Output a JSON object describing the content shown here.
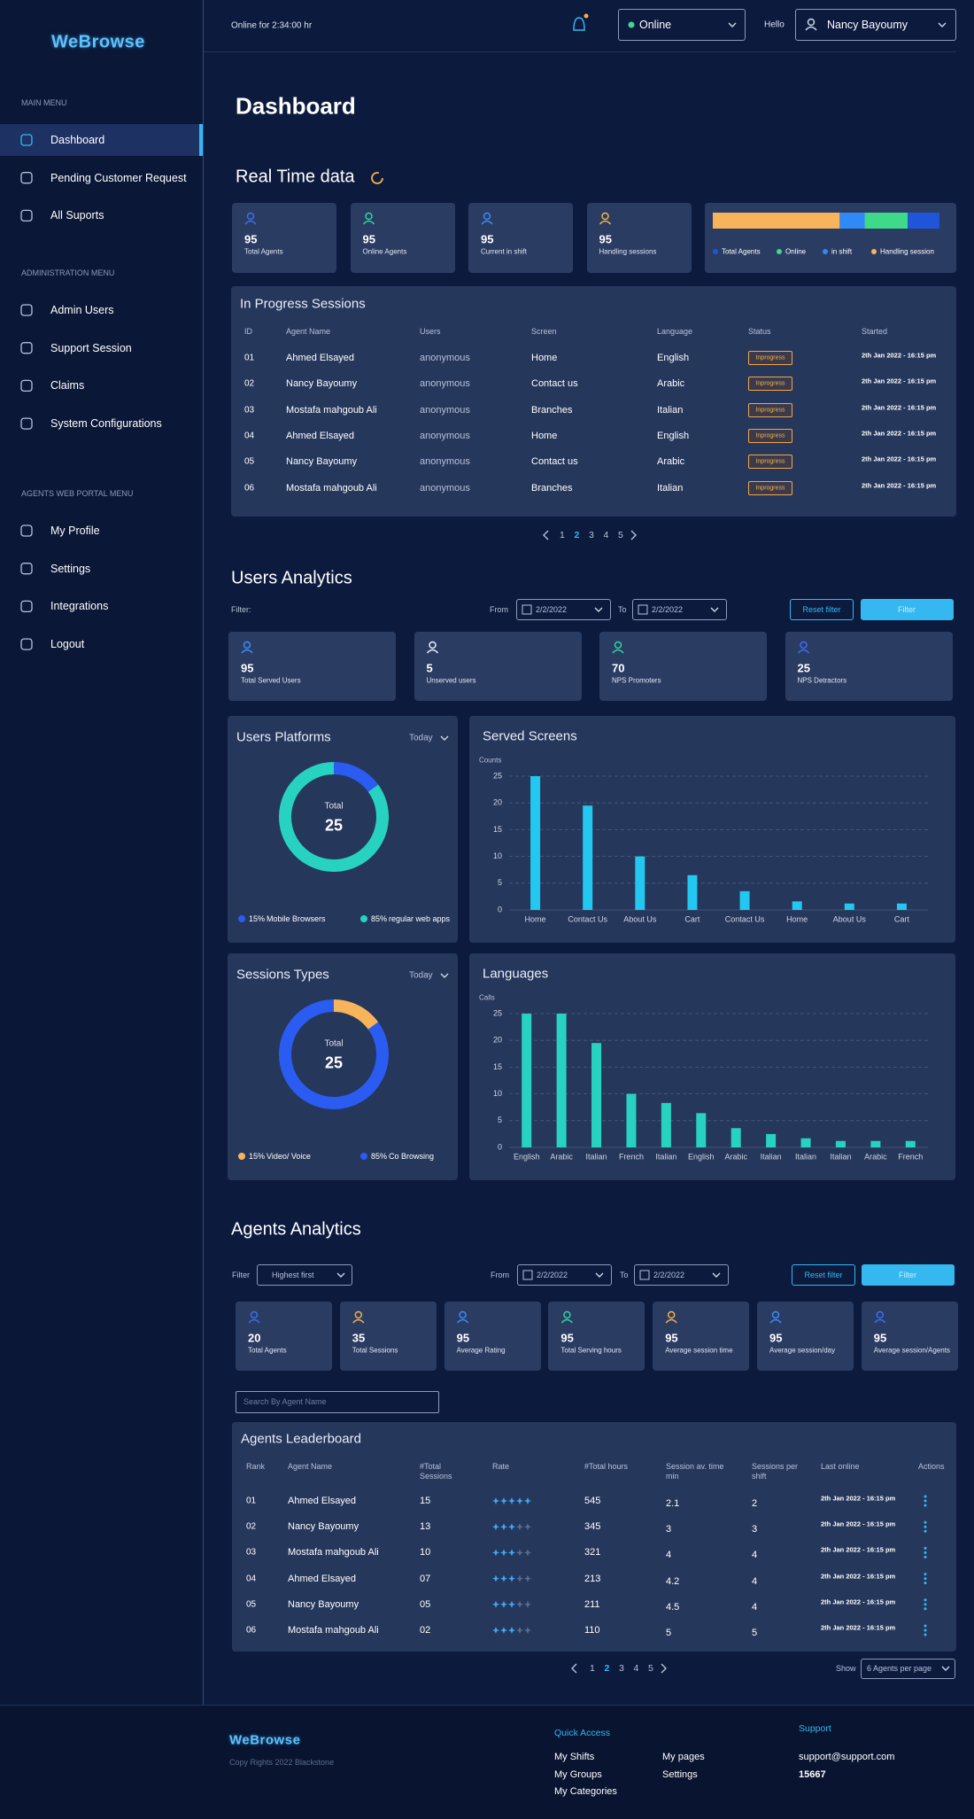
{
  "sidebar": {
    "logo": "WeBrowse",
    "sections": [
      {
        "title": "MAIN MENU",
        "items": [
          {
            "label": "Dashboard",
            "active": true
          },
          {
            "label": "Pending Customer Request"
          },
          {
            "label": "All Suports"
          }
        ]
      },
      {
        "title": "ADMINISTRATION MENU",
        "items": [
          {
            "label": "Admin Users"
          },
          {
            "label": "Support Session"
          },
          {
            "label": "Claims"
          },
          {
            "label": "System Configurations"
          }
        ]
      },
      {
        "title": "AGENTS WEB PORTAL MENU",
        "items": [
          {
            "label": "My Profile"
          },
          {
            "label": "Settings"
          },
          {
            "label": "Integrations"
          },
          {
            "label": "Logout"
          }
        ]
      }
    ]
  },
  "header": {
    "online_time": "Online for 2:34:00 hr",
    "status": "Online",
    "greeting": "Hello",
    "user": "Nancy Bayoumy"
  },
  "page_title": "Dashboard",
  "realtime": {
    "title": "Real Time data",
    "cards": [
      {
        "value": 95,
        "label": "Total Agents",
        "color": "#3b6df0"
      },
      {
        "value": 95,
        "label": "Online Agents",
        "color": "#2ed3a0"
      },
      {
        "value": 95,
        "label": "Current in shift",
        "color": "#3b8cf5"
      },
      {
        "value": 95,
        "label": "Handling sessions",
        "color": "#f5b04a"
      }
    ],
    "legend": [
      {
        "name": "Total Agents",
        "color": "#1f55d8",
        "share": 14
      },
      {
        "name": "Online",
        "color": "#3fd98a",
        "share": 19
      },
      {
        "name": "in shift",
        "color": "#2f8af5",
        "share": 11
      },
      {
        "name": "Handling session",
        "color": "#f8b45a",
        "share": 56
      }
    ]
  },
  "sessions": {
    "title": "In Progress Sessions",
    "columns": [
      "ID",
      "Agent Name",
      "Users",
      "Screen",
      "Language",
      "Status",
      "Started"
    ],
    "rows": [
      [
        "01",
        "Ahmed Elsayed",
        "anonymous",
        "Home",
        "English",
        "Inprogress",
        "2th Jan 2022 - 16:15 pm"
      ],
      [
        "02",
        "Nancy Bayoumy",
        "anonymous",
        "Contact us",
        "Arabic",
        "Inprogress",
        "2th Jan 2022 - 16:15 pm"
      ],
      [
        "03",
        "Mostafa mahgoub Ali",
        "anonymous",
        "Branches",
        "Italian",
        "Inprogress",
        "2th Jan 2022 - 16:15 pm"
      ],
      [
        "04",
        "Ahmed Elsayed",
        "anonymous",
        "Home",
        "English",
        "Inprogress",
        "2th Jan 2022 - 16:15 pm"
      ],
      [
        "05",
        "Nancy Bayoumy",
        "anonymous",
        "Contact us",
        "Arabic",
        "Inprogress",
        "2th Jan 2022 - 16:15 pm"
      ],
      [
        "06",
        "Mostafa mahgoub Ali",
        "anonymous",
        "Branches",
        "Italian",
        "Inprogress",
        "2th Jan 2022 - 16:15 pm"
      ]
    ],
    "pagination": {
      "pages": [
        1,
        2,
        3,
        4,
        5
      ],
      "current": 2
    }
  },
  "users": {
    "title": "Users Analytics",
    "filter": {
      "label": "Filter:",
      "from_label": "From",
      "from": "2/2/2022",
      "to_label": "To",
      "to": "2/2/2022",
      "reset": "Reset filter",
      "apply": "Filter"
    },
    "cards": [
      {
        "value": 95,
        "label": "Total Served Users",
        "color": "#3b8cf5"
      },
      {
        "value": 5,
        "label": "Unserved users",
        "color": "#e8eefc"
      },
      {
        "value": 70,
        "label": "NPS Promoters",
        "color": "#2ed3a0"
      },
      {
        "value": 25,
        "label": "NPS Detractors",
        "color": "#3b6df0"
      }
    ],
    "platforms": {
      "type": "donut",
      "title": "Users Platforms",
      "period": "Today",
      "center_label": "Total",
      "total": 25,
      "segments": [
        {
          "name": "Mobile Browsers",
          "value": 15,
          "label": "15%",
          "color": "#2a5cf2"
        },
        {
          "name": "regular web apps",
          "value": 85,
          "label": "85%",
          "color": "#27d3c0"
        }
      ]
    },
    "served": {
      "type": "bar",
      "title": "Served Screens",
      "ylabel": "Counts",
      "color": "#22c8f0",
      "categories": [
        "Home",
        "Contact Us",
        "About Us",
        "Cart",
        "Contact Us",
        "Home",
        "About Us",
        "Cart"
      ],
      "values": [
        25,
        19.5,
        10,
        6.5,
        3.5,
        1.6,
        1.2,
        1.2
      ],
      "ylim": [
        0,
        25
      ],
      "yticks": [
        0,
        5,
        10,
        15,
        20,
        25
      ]
    },
    "session_types": {
      "type": "donut",
      "title": "Sessions Types",
      "period": "Today",
      "center_label": "Total",
      "total": 25,
      "segments": [
        {
          "name": "Video/ Voice",
          "value": 15,
          "label": "15%",
          "color": "#f8b45a"
        },
        {
          "name": "Co Browsing",
          "value": 85,
          "label": "85%",
          "color": "#2a5cf2"
        }
      ]
    },
    "languages": {
      "type": "bar",
      "title": "Languages",
      "ylabel": "Calls",
      "color": "#27d3c0",
      "categories": [
        "English",
        "Arabic",
        "Italian",
        "French",
        "Italian",
        "English",
        "Arabic",
        "Italian",
        "Italian",
        "Italian",
        "Arabic",
        "French"
      ],
      "values": [
        25,
        25,
        19.5,
        10,
        8.3,
        6.4,
        3.6,
        2.5,
        1.7,
        1.2,
        1.2,
        1.2
      ],
      "ylim": [
        0,
        25
      ],
      "yticks": [
        0,
        5,
        10,
        15,
        20,
        25
      ]
    }
  },
  "agents": {
    "title": "Agents Analytics",
    "filter": {
      "label": "Filter",
      "sort": "Highest first",
      "from_label": "From",
      "from": "2/2/2022",
      "to_label": "To",
      "to": "2/2/2022",
      "reset": "Reset filter",
      "apply": "Filter"
    },
    "cards": [
      {
        "value": 20,
        "label": "Total Agents",
        "color": "#3b6df0"
      },
      {
        "value": 35,
        "label": "Total Sessions",
        "color": "#f5b04a"
      },
      {
        "value": 95,
        "label": "Average Rating",
        "color": "#3b8cf5"
      },
      {
        "value": 95,
        "label": "Total Serving hours",
        "color": "#2ed3a0"
      },
      {
        "value": 95,
        "label": "Average session time",
        "color": "#f5b04a"
      },
      {
        "value": 95,
        "label": "Average session/day",
        "color": "#3b8cf5"
      },
      {
        "value": 95,
        "label": "Average session/Agents",
        "color": "#3b6df0"
      }
    ],
    "search_placeholder": "Search By Agent Name",
    "leaderboard": {
      "title": "Agents Leaderboard",
      "columns": [
        "Rank",
        "Agent Name",
        "#Total Sessions",
        "Rate",
        "#Total hours",
        "Session av. time min",
        "Sessions per shift",
        "Last online",
        "Actions"
      ],
      "rows": [
        [
          "01",
          "Ahmed Elsayed",
          "15",
          5,
          545,
          2.1,
          2,
          "2th Jan 2022 - 16:15 pm"
        ],
        [
          "02",
          "Nancy Bayoumy",
          "13",
          3,
          345,
          3,
          3,
          "2th Jan 2022 - 16:15 pm"
        ],
        [
          "03",
          "Mostafa mahgoub Ali",
          "10",
          3,
          321,
          4,
          4,
          "2th Jan 2022 - 16:15 pm"
        ],
        [
          "04",
          "Ahmed Elsayed",
          "07",
          3,
          213,
          4.2,
          4,
          "2th Jan 2022 - 16:15 pm"
        ],
        [
          "05",
          "Nancy Bayoumy",
          "05",
          3,
          211,
          4.5,
          4,
          "2th Jan 2022 - 16:15 pm"
        ],
        [
          "06",
          "Mostafa mahgoub Ali",
          "02",
          3,
          110,
          5,
          5,
          "2th Jan 2022 - 16:15 pm"
        ]
      ],
      "pagination": {
        "pages": [
          1,
          2,
          3,
          4,
          5
        ],
        "current": 2
      },
      "show_label": "Show",
      "page_size": "6 Agents per page"
    }
  },
  "footer": {
    "logo": "WeBrowse",
    "copyright": "Copy Rights 2022 Blackstone",
    "quick_access": {
      "title": "Quick Access",
      "links": [
        "My Shifts",
        "My Groups",
        "My Categories",
        "My pages",
        "Settings"
      ]
    },
    "support": {
      "title": "Support",
      "email": "support@support.com",
      "phone": "15667"
    }
  }
}
